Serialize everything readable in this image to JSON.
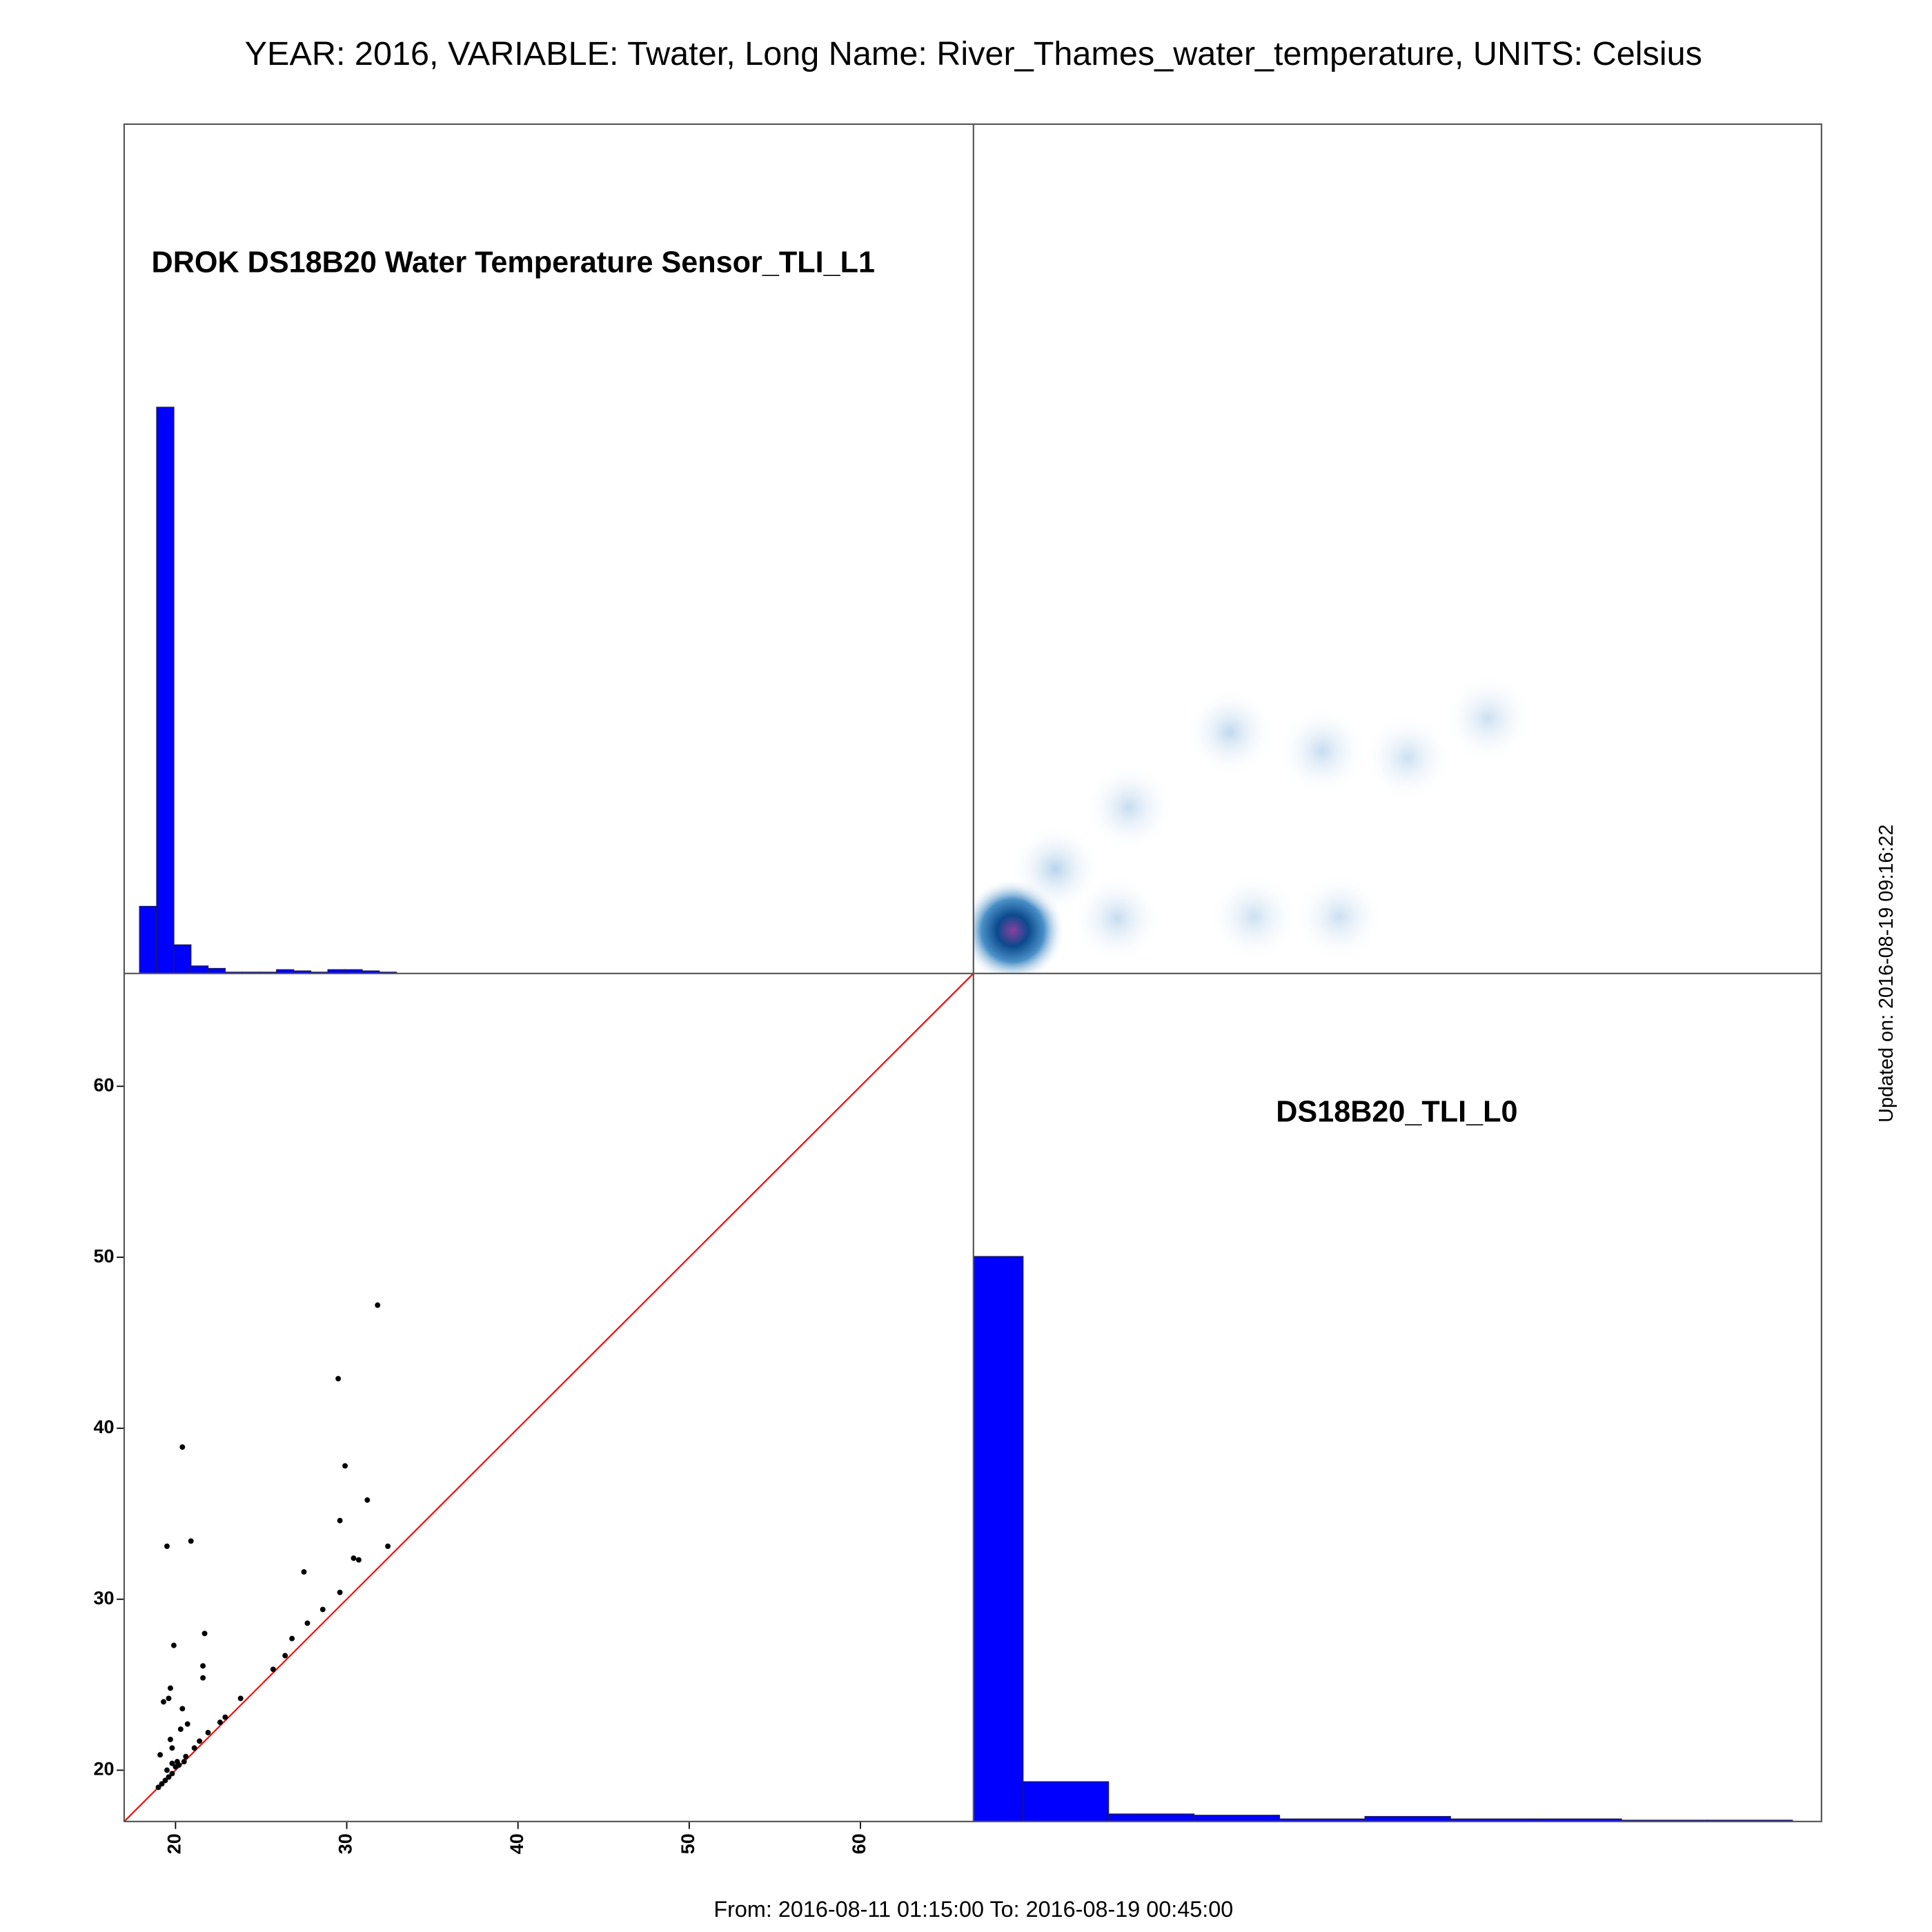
{
  "title": "YEAR: 2016, VARIABLE: Twater, Long Name: River_Thames_water_temperature, UNITS: Celsius",
  "updated": "Updated on: 2016-08-19 09:16:22",
  "period": "From: 2016-08-11 01:15:00 To: 2016-08-19 00:45:00",
  "chart_data": [
    {
      "type": "histogram",
      "title": "DROK DS18B20 Water Temperature Sensor_TLI_L1",
      "color": "#0000ff",
      "bins": [
        17.9,
        18.9,
        19.9,
        20.9,
        21.9,
        22.9,
        23.9,
        24.9,
        25.9,
        26.9,
        27.9,
        28.9,
        29.9,
        30.9,
        31.9,
        32.9
      ],
      "values": [
        54,
        456,
        23,
        6,
        4,
        1,
        1,
        1,
        3,
        2,
        1,
        3,
        3,
        2,
        1
      ],
      "xlim": [
        17,
        66.6
      ],
      "ylim": [
        0,
        684
      ]
    },
    {
      "type": "density",
      "x": [
        19.3,
        21.8,
        25.4,
        33.4,
        38.4,
        26.1,
        32.0,
        37.4,
        42.4,
        47.1
      ],
      "y": [
        19.5,
        23.1,
        20.2,
        20.3,
        20.3,
        26.7,
        31.1,
        30.0,
        29.6,
        31.9
      ],
      "weights": [
        1,
        0.25,
        0.2,
        0.18,
        0.18,
        0.2,
        0.22,
        0.2,
        0.18,
        0.18
      ],
      "xlim": [
        17,
        66.6
      ],
      "ylim": [
        17,
        66.6
      ]
    },
    {
      "type": "scatter",
      "color": "#000000",
      "identity_line": true,
      "identity_color": "#ff0000",
      "x": [
        31.8,
        29.5,
        20.4,
        29.9,
        31.2,
        29.6,
        19.5,
        20.9,
        30.4,
        30.7,
        32.4,
        27.5,
        29.6,
        28.6,
        27.7,
        26.8,
        26.4,
        21.7,
        19.9,
        21.6,
        21.6,
        19.7,
        19.6,
        19.3,
        20.4,
        20.7,
        20.3,
        22.9,
        22.6,
        23.8,
        25.7,
        19.1,
        19.7,
        19.8,
        21.9,
        21.4,
        21.1,
        20.6,
        20.1,
        19.0,
        19.2,
        19.4,
        19.6,
        19.8,
        20.0,
        20.2,
        20.5,
        19.5,
        19.8
      ],
      "y": [
        47.2,
        42.9,
        38.9,
        37.8,
        35.8,
        34.6,
        33.1,
        33.4,
        32.4,
        32.3,
        33.1,
        31.6,
        30.4,
        29.4,
        28.6,
        27.7,
        26.7,
        28.0,
        27.3,
        26.1,
        25.4,
        24.8,
        24.2,
        24.0,
        23.6,
        22.7,
        22.4,
        23.1,
        22.8,
        24.2,
        25.9,
        20.9,
        21.8,
        21.3,
        22.2,
        21.7,
        21.3,
        20.8,
        20.5,
        19.0,
        19.2,
        19.4,
        19.6,
        19.8,
        20.2,
        20.3,
        20.5,
        20.0,
        20.4
      ],
      "xlim": [
        17,
        66.6
      ],
      "ylim": [
        17,
        66.6
      ],
      "xticks": [
        20,
        30,
        40,
        50,
        60
      ],
      "yticks": [
        20,
        30,
        40,
        50,
        60
      ]
    },
    {
      "type": "histogram",
      "title": "DS18B20_TLI_L0",
      "color": "#0000ff",
      "bins": [
        14.9,
        19.9,
        24.9,
        29.9,
        34.9,
        39.9,
        44.9,
        49.9,
        54.9,
        59.9,
        64.9
      ],
      "values": [
        455,
        32,
        6,
        5,
        2,
        4,
        2,
        2,
        1,
        1
      ],
      "xlim": [
        17,
        66.6
      ],
      "ylim": [
        0,
        683
      ]
    }
  ]
}
